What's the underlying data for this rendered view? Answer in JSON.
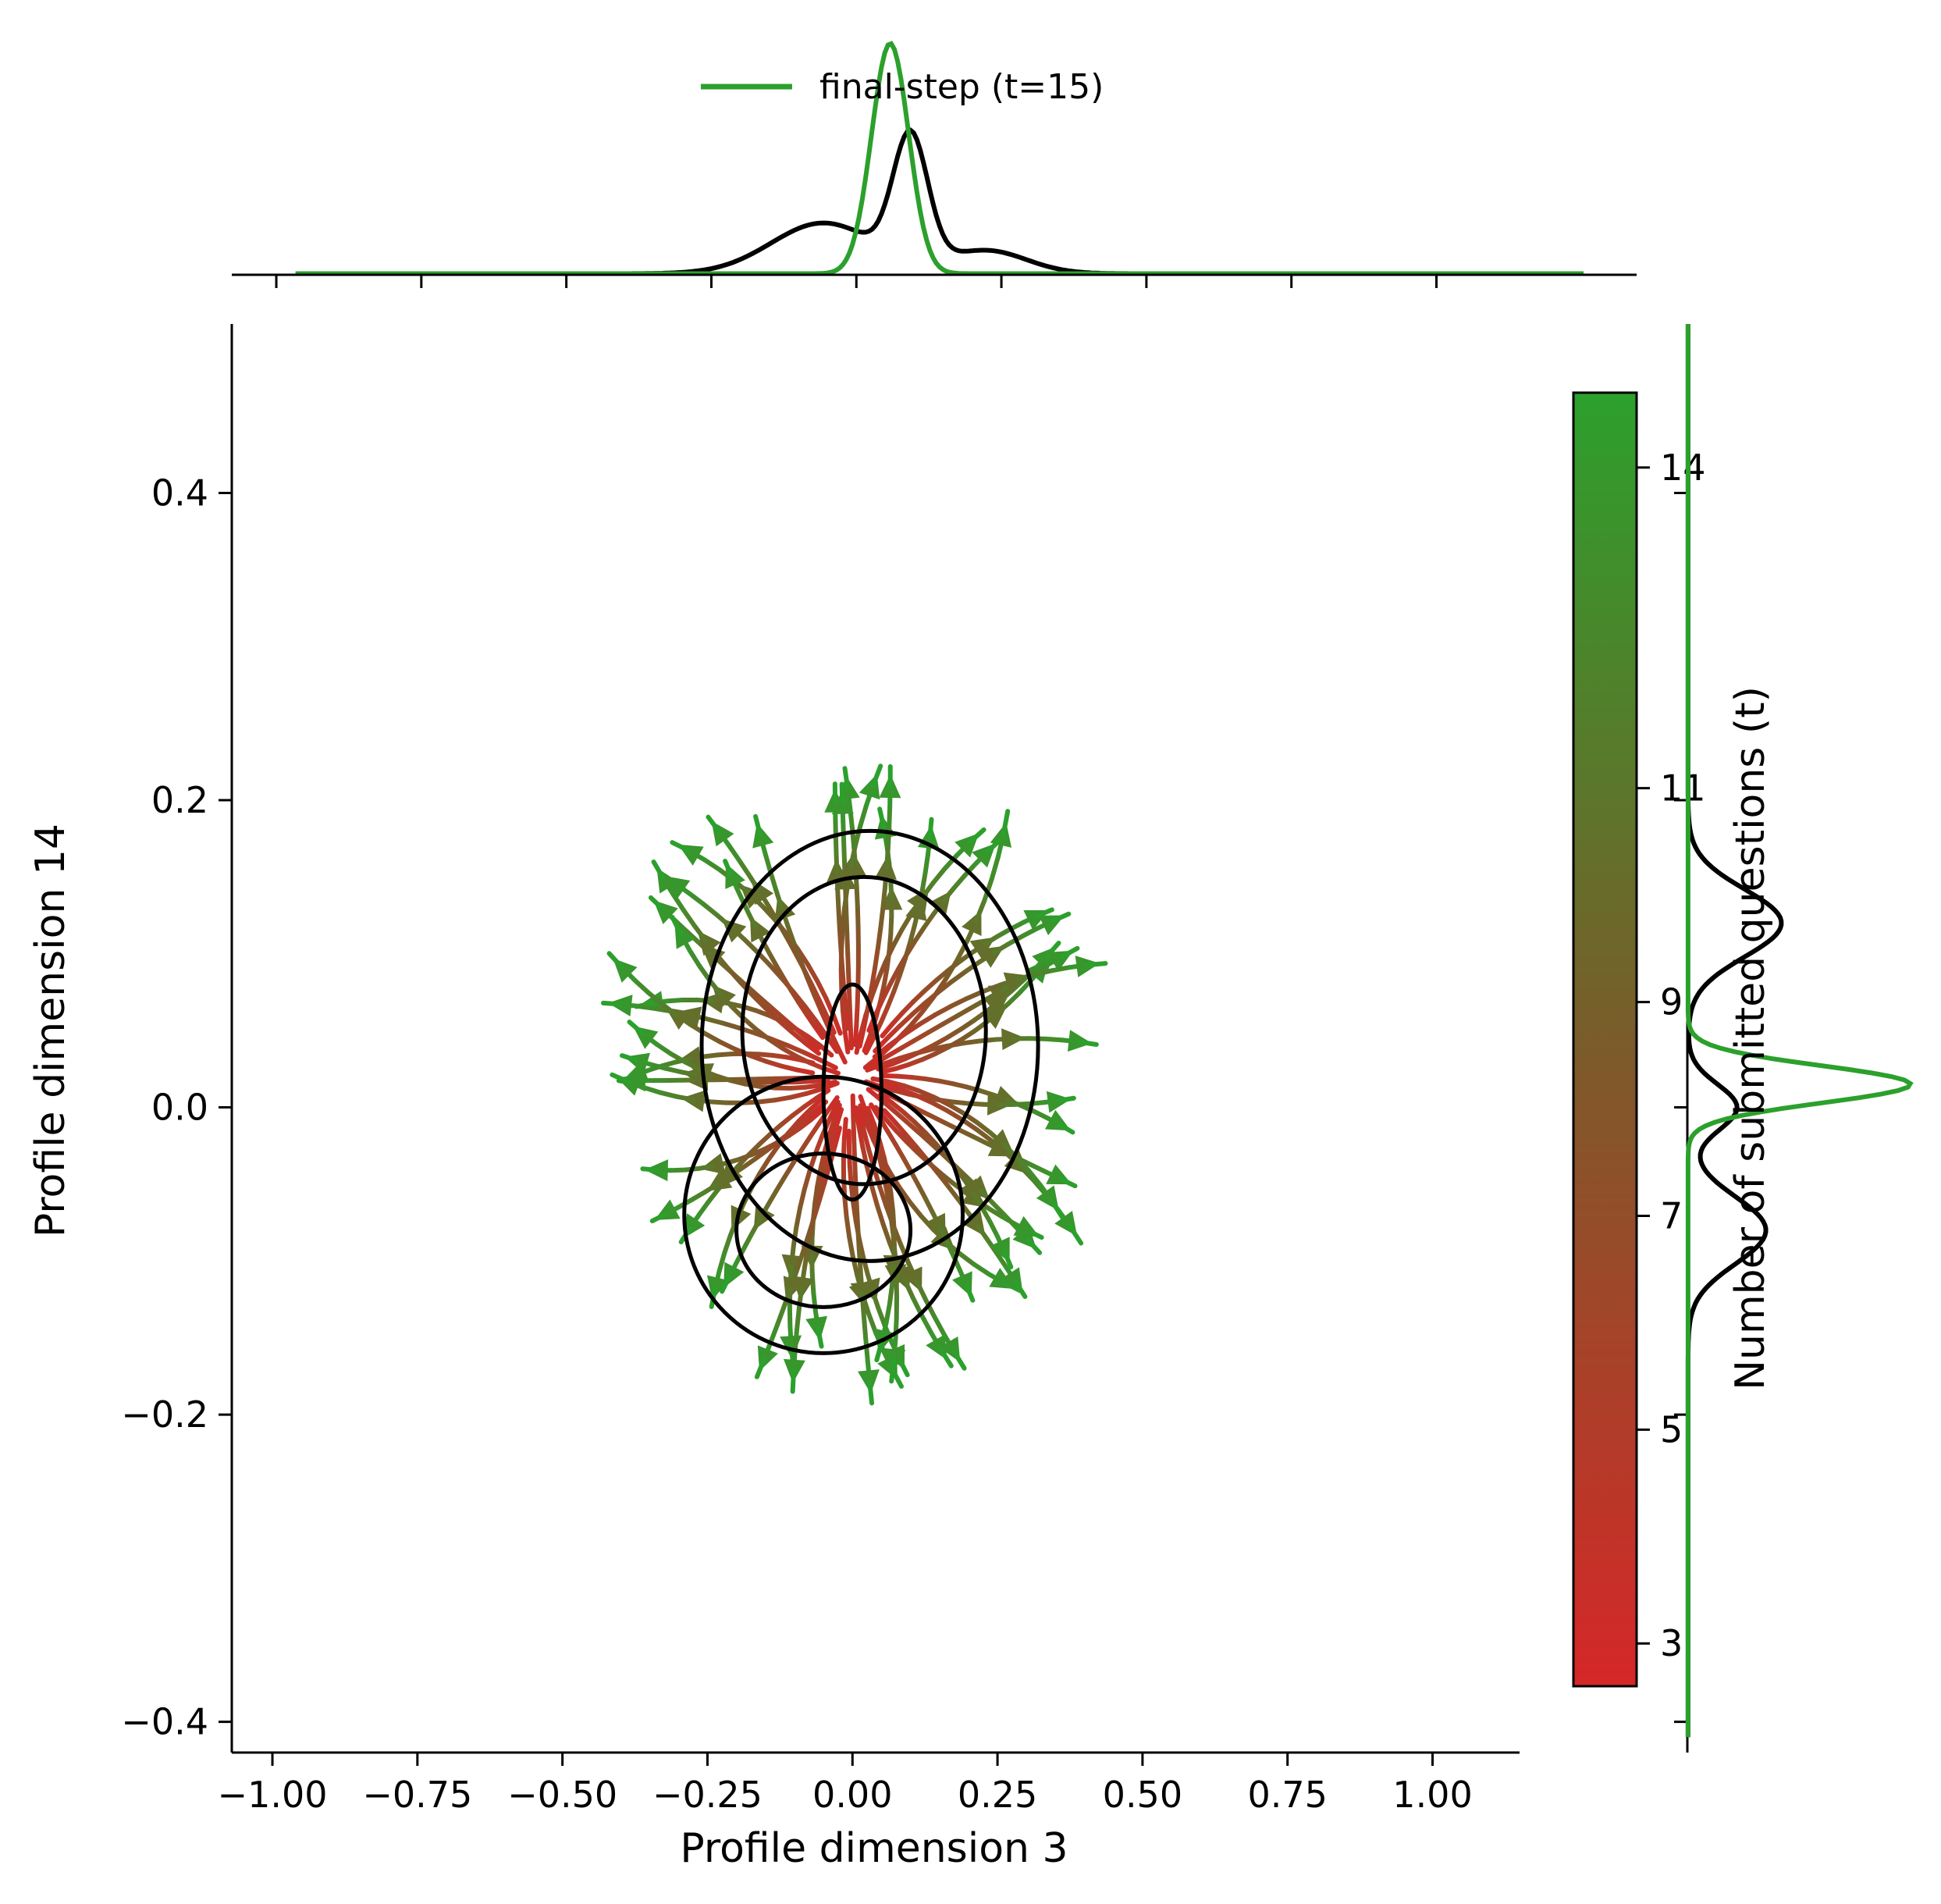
{
  "chart_data": {
    "type": "streamplot",
    "xlabel": "Profile dimension 3",
    "ylabel": "Profile dimension 14",
    "xlim": [
      -1.07,
      1.15
    ],
    "ylim": [
      -0.42,
      0.51
    ],
    "x_ticks": [
      -1.0,
      -0.75,
      -0.5,
      -0.25,
      0.0,
      0.25,
      0.5,
      0.75,
      1.0
    ],
    "x_tick_labels": [
      "−1.00",
      "−0.75",
      "−0.50",
      "−0.25",
      "0.00",
      "0.25",
      "0.50",
      "0.75",
      "1.00"
    ],
    "y_ticks": [
      -0.4,
      -0.2,
      0.0,
      0.2,
      0.4
    ],
    "y_tick_labels": [
      "−0.4",
      "−0.2",
      "0.0",
      "0.2",
      "0.4"
    ],
    "grid": false,
    "colorbar": {
      "label": "Number of submitted questions (t)",
      "range": [
        2.6,
        14.7
      ],
      "ticks": [
        3,
        5,
        7,
        9,
        11,
        14
      ],
      "tick_labels": [
        "3",
        "5",
        "7",
        "9",
        "11",
        "14"
      ],
      "color_low": "#d62728",
      "color_mid": "#7a5c2a",
      "color_high": "#2ca02c"
    },
    "streamlines": {
      "center": [
        0.0,
        0.02
      ],
      "extent_x": [
        -0.45,
        0.47
      ],
      "extent_y": [
        -0.19,
        0.23
      ],
      "description_direction": "outward from center"
    },
    "contour": {
      "color": "#000000",
      "levels": [
        {
          "cx": 0.03,
          "cy": 0.04,
          "rx": 0.29,
          "ry": 0.14
        },
        {
          "cx": 0.02,
          "cy": 0.05,
          "rx": 0.21,
          "ry": 0.1
        },
        {
          "cx": -0.05,
          "cy": -0.07,
          "rx": 0.24,
          "ry": 0.09
        },
        {
          "cx": -0.05,
          "cy": -0.08,
          "rx": 0.15,
          "ry": 0.05
        },
        {
          "cx": 0.0,
          "cy": 0.01,
          "rx": 0.05,
          "ry": 0.07
        }
      ]
    },
    "marginal_x": {
      "series": [
        {
          "name": "",
          "color": "#000000",
          "peaks": [
            {
              "mu": 0.1,
              "sigma": 0.03,
              "amp": 0.55
            },
            {
              "mu": -0.05,
              "sigma": 0.09,
              "amp": 0.22
            },
            {
              "mu": 0.23,
              "sigma": 0.07,
              "amp": 0.1
            }
          ]
        },
        {
          "name": "final-step (t=15)",
          "color": "#2ca02c",
          "peaks": [
            {
              "mu": 0.065,
              "sigma": 0.032,
              "amp": 1.0
            }
          ]
        }
      ],
      "x_range": [
        -0.96,
        1.26
      ]
    },
    "marginal_y": {
      "series": [
        {
          "name": "",
          "color": "#000000",
          "peaks": [
            {
              "mu": 0.12,
              "sigma": 0.022,
              "amp": 0.42
            },
            {
              "mu": 0.0,
              "sigma": 0.015,
              "amp": 0.22
            },
            {
              "mu": -0.08,
              "sigma": 0.022,
              "amp": 0.35
            }
          ]
        },
        {
          "name": "final-step (t=15)",
          "color": "#2ca02c",
          "peaks": [
            {
              "mu": 0.015,
              "sigma": 0.012,
              "amp": 1.0
            }
          ]
        }
      ]
    },
    "legend": {
      "placement": "top-center",
      "entries": [
        {
          "label": "final-step (t=15)",
          "color": "#2ca02c"
        }
      ]
    }
  }
}
